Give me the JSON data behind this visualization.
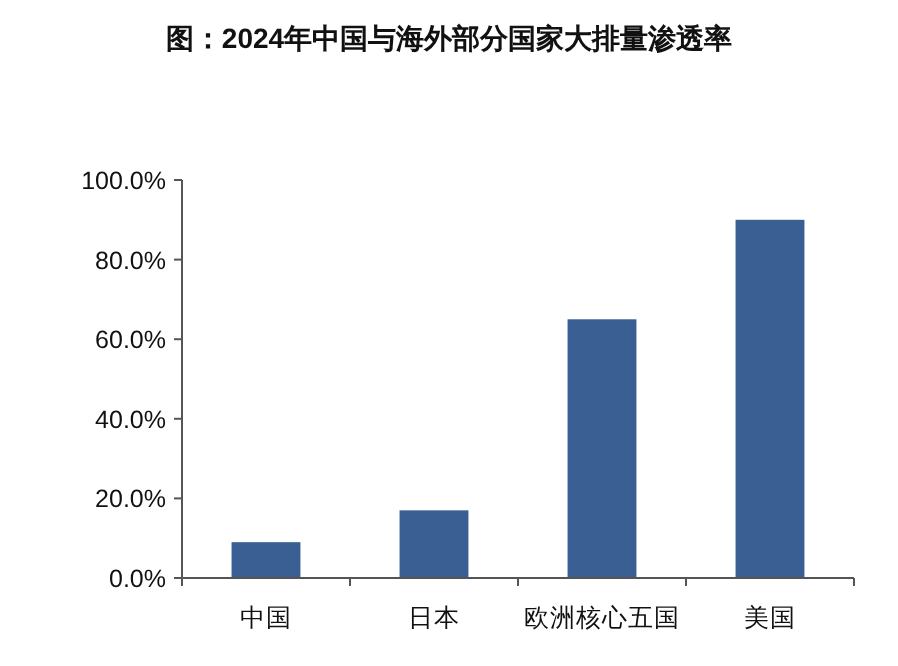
{
  "chart_data": {
    "type": "bar",
    "title": "图：2024年中国与海外部分国家大排量渗透率",
    "categories": [
      "中国",
      "日本",
      "欧洲核心五国",
      "美国"
    ],
    "values": [
      9,
      17,
      65,
      90
    ],
    "color": "#3a5f92",
    "ylim": [
      0,
      100
    ],
    "yticks": [
      {
        "value": 0,
        "label": "0.0%"
      },
      {
        "value": 20,
        "label": "20.0%"
      },
      {
        "value": 40,
        "label": "40.0%"
      },
      {
        "value": 60,
        "label": "60.0%"
      },
      {
        "value": 80,
        "label": "80.0%"
      },
      {
        "value": 100,
        "label": "100.0%"
      }
    ],
    "grid": false
  }
}
